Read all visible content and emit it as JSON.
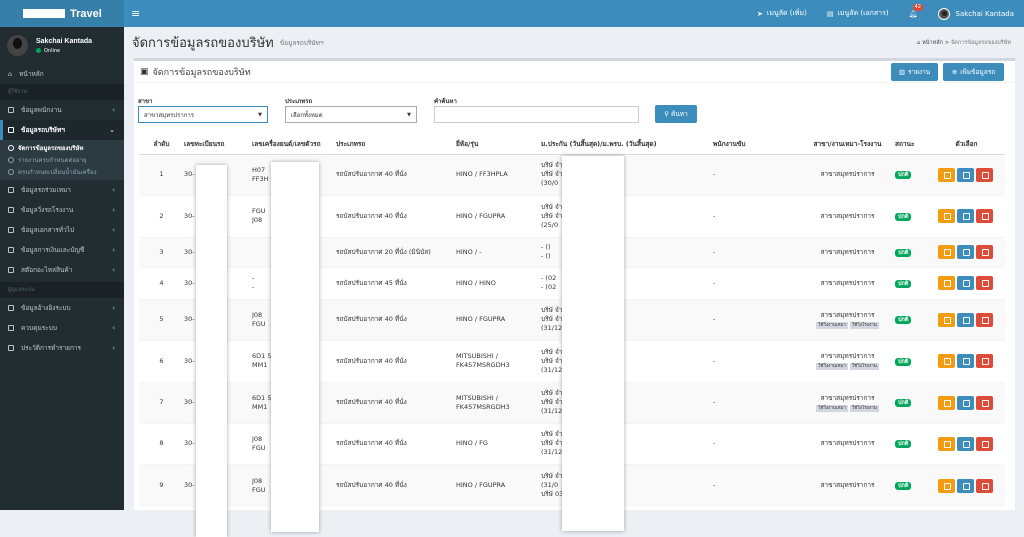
{
  "app": {
    "title": "Travel"
  },
  "topbar": {
    "items": [
      {
        "label": "เมนูลัด (เพิ่ม)"
      },
      {
        "label": "เมนูลัด (เอกสาร)"
      }
    ],
    "notif_count": "42",
    "user_name": "Sakchai Kantada"
  },
  "sidebar": {
    "user": {
      "name": "Sakchai Kantada",
      "status": "Online"
    },
    "items": [
      {
        "label": "หน้าหลัก"
      }
    ],
    "header1": "ผู้ใช้งาน",
    "group1": [
      {
        "label": "ข้อมูลพนักงาน"
      },
      {
        "label": "ข้อมูลรถบริษัทฯ"
      }
    ],
    "sub": [
      {
        "label": "จัดการข้อมูลรถของบริษัท"
      },
      {
        "label": "รายงานครบกำหนดต่ออายุ"
      },
      {
        "label": "ครบกำหนดเปลี่ยนน้ำมันเครื่อง"
      }
    ],
    "group2": [
      {
        "label": "ข้อมูลรถร่วมเหมา"
      },
      {
        "label": "ข้อมูลวิ่งรถโรงงาน"
      },
      {
        "label": "ข้อมูลเอกสารทั่วไป"
      },
      {
        "label": "ข้อมูลการเงินและบัญชี"
      },
      {
        "label": "สต๊อกอะไหล่สินค้า"
      }
    ],
    "header2": "ผู้ดูแลระบบ",
    "group3": [
      {
        "label": "ข้อมูลอ้างอิงระบบ"
      },
      {
        "label": "ควบคุมระบบ"
      },
      {
        "label": "ประวัติการทำรายการ"
      }
    ]
  },
  "page": {
    "title": "จัดการข้อมูลรถของบริษัท",
    "subtitle": "ข้อมูลรถบริษัทฯ",
    "breadcrumb_home": "หน้าหลัก",
    "breadcrumb_current": "จัดการข้อมูลรถของบริษัท"
  },
  "box": {
    "title": "จัดการข้อมูลรถของบริษัท",
    "report_btn": "รายงาน",
    "add_btn": "เพิ่มข้อมูลรถ"
  },
  "filters": {
    "branch_label": "สาขา",
    "branch_value": "สาขาสมุทรปราการ",
    "type_label": "ประเภทรถ",
    "type_value": "เลือกทั้งหมด",
    "search_label": "คำค้นหา",
    "search_value": "",
    "search_btn": "ค้นหา"
  },
  "table": {
    "headers": [
      "ลำดับ",
      "เลขทะเบียนรถ",
      "เลขเครื่องยนต์/เลขตัวรถ",
      "ประเภทรถ",
      "ยี่ห้อ/รุ่น",
      "ม.ประกัน (วันสิ้นสุด)/ม.พรบ. (วันสิ้นสุด)",
      "พนักงานขับ",
      "สาขา/งานเหมา-โรงงาน",
      "สถานะ",
      "ตัวเลือก"
    ],
    "rows": [
      {
        "no": "1",
        "plate": "30-",
        "engine": [
          "H07",
          "FF3H"
        ],
        "type": "รถบัสปรับอากาศ 40 ที่นั่ง",
        "brand": [
          "HINO / FF3HPLA"
        ],
        "ins": [
          "บริษั               จำกัด (30/09/2561)",
          "บริษั               จำกัด (มหาชน)",
          "(30/0"
        ],
        "driver": "-",
        "branch": "สาขาสมุทรปราการ",
        "tags": [],
        "status": "ปกติ"
      },
      {
        "no": "2",
        "plate": "30-",
        "engine": [
          "FGU",
          "J08"
        ],
        "type": "รถบัสปรับอากาศ 40 ที่นั่ง",
        "brand": [
          "HINO / FGUPRA"
        ],
        "ins": [
          "บริษั               จำกัด (25/05/2562)",
          "บริษั               จำกัด (มหาชน)",
          "(25/0"
        ],
        "driver": "-",
        "branch": "สาขาสมุทรปราการ",
        "tags": [],
        "status": "ปกติ"
      },
      {
        "no": "3",
        "plate": "30-",
        "engine": [
          ""
        ],
        "type": "รถบัสปรับอากาศ 20 ที่นั่ง (มินิบัส)",
        "brand": [
          "HINO / -"
        ],
        "ins": [
          "- ()",
          "- ()"
        ],
        "driver": "-",
        "branch": "สาขาสมุทรปราการ",
        "tags": [],
        "status": "ปกติ"
      },
      {
        "no": "4",
        "plate": "30-",
        "engine": [
          "-",
          "-"
        ],
        "type": "รถบัสปรับอากาศ 45 ที่นั่ง",
        "brand": [
          "HINO / HINO"
        ],
        "ins": [
          "- (02",
          "- (02"
        ],
        "driver": "-",
        "branch": "สาขาสมุทรปราการ",
        "tags": [],
        "status": "ปกติ"
      },
      {
        "no": "5",
        "plate": "30-",
        "engine": [
          "J08",
          "FGU"
        ],
        "type": "รถบัสปรับอากาศ 40 ที่นั่ง",
        "brand": [
          "HINO / FGUPRA"
        ],
        "ins": [
          "บริษั               จำกัด (28/02/2562)",
          "บริษั               จำกัด (มหาชน)",
          "(31/12"
        ],
        "driver": "-",
        "branch": "สาขาสมุทรปราการ",
        "tags": [
          "ใช้วิ่งงานเหมา",
          "ใช้วิ่งโรงงาน"
        ],
        "status": "ปกติ"
      },
      {
        "no": "6",
        "plate": "30-",
        "engine": [
          "6D1                      506",
          "MM1"
        ],
        "type": "รถบัสปรับอากาศ 40 ที่นั่ง",
        "brand": [
          "MITSUBISHI /",
          "FK457MSRGDH3"
        ],
        "ins": [
          "บริษั               จำกัด (27/02/2561)",
          "บริษั               จำกัด (มหาชน)",
          "(31/12"
        ],
        "driver": "-",
        "branch": "สาขาสมุทรปราการ",
        "tags": [
          "ใช้วิ่งงานเหมา",
          "ใช้วิ่งโรงงาน"
        ],
        "status": "ปกติ"
      },
      {
        "no": "7",
        "plate": "30-",
        "engine": [
          "6D1                      503",
          "MM1"
        ],
        "type": "รถบัสปรับอากาศ 40 ที่นั่ง",
        "brand": [
          "MITSUBISHI /",
          "FK457MSRGDH3"
        ],
        "ins": [
          "บริษั               จำกัด (31/12/2561)",
          "บริษั               จำกัด (มหาชน)",
          "(31/12"
        ],
        "driver": "-",
        "branch": "สาขาสมุทรปราการ",
        "tags": [
          "ใช้วิ่งงานเหมา",
          "ใช้วิ่งโรงงาน"
        ],
        "status": "ปกติ"
      },
      {
        "no": "8",
        "plate": "30-",
        "engine": [
          "J08",
          "FGU"
        ],
        "type": "รถบัสปรับอากาศ 40 ที่นั่ง",
        "brand": [
          "HINO / FG"
        ],
        "ins": [
          "บริษั               จำกัด (27/02/2561)",
          "บริษั               จำกัด (มหาชน)",
          "(31/12"
        ],
        "driver": "-",
        "branch": "สาขาสมุทรปราการ",
        "tags": [],
        "status": "ปกติ"
      },
      {
        "no": "9",
        "plate": "30-",
        "engine": [
          "J08",
          "FGU"
        ],
        "type": "รถบัสปรับอากาศ 40 ที่นั่ง",
        "brand": [
          "HINO / FGUPRA"
        ],
        "ins": [
          "บริษั               จำกัด (มหาชน)",
          "(31/0",
          "บริษั                   03/2562)"
        ],
        "driver": "-",
        "branch": "สาขาสมุทรปราการ",
        "tags": [],
        "status": "ปกติ"
      }
    ]
  }
}
